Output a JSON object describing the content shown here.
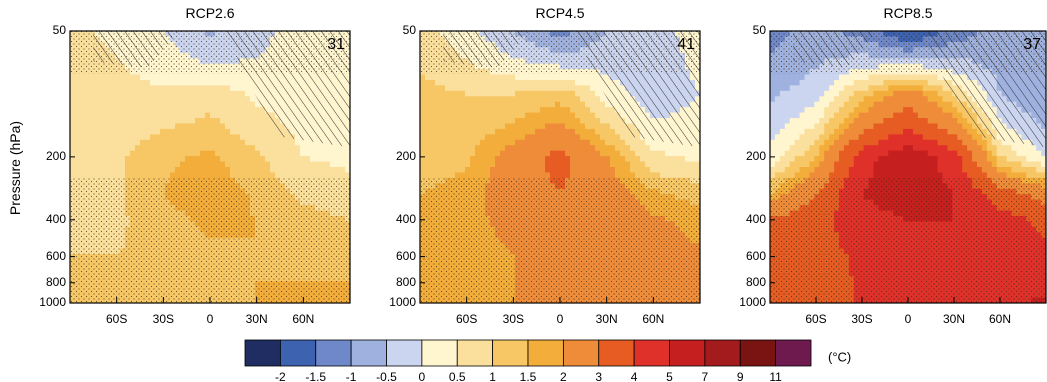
{
  "figure": {
    "ylabel": "Pressure (hPa)",
    "colorbar_unit": "(°C)"
  },
  "colorbar": {
    "ticks": [
      "-2",
      "-1.5",
      "-1",
      "-0.5",
      "0",
      "0.5",
      "1",
      "1.5",
      "2",
      "3",
      "4",
      "5",
      "7",
      "9",
      "11"
    ],
    "colors": [
      "#1f2d62",
      "#3d62b0",
      "#6f88c9",
      "#9fb1df",
      "#cbd5ef",
      "#fff5cf",
      "#fbdf9c",
      "#f7c765",
      "#f3ad3a",
      "#ef8c3a",
      "#e65c22",
      "#e0302a",
      "#c5201f",
      "#a31b1c",
      "#7a1412",
      "#6f1a4f"
    ]
  },
  "chart_data": [
    {
      "type": "heatmap",
      "title": "RCP2.6",
      "annotation": "31",
      "xlabel": "",
      "ylabel": "Pressure (hPa)",
      "x_ticks": [
        "60S",
        "30S",
        "0",
        "30N",
        "60N"
      ],
      "x_tick_values": [
        -60,
        -30,
        0,
        30,
        60
      ],
      "xlim": [
        -90,
        90
      ],
      "y_ticks": [
        "50",
        "200",
        "400",
        "600",
        "800",
        "1000"
      ],
      "y_tick_values": [
        50,
        200,
        400,
        600,
        800,
        1000
      ],
      "ylim": [
        50,
        1000
      ],
      "y_scale": "log",
      "x": [
        -90,
        -60,
        -30,
        0,
        30,
        60,
        90
      ],
      "y": [
        50,
        100,
        200,
        300,
        400,
        600,
        800,
        1000
      ],
      "z": [
        [
          0.6,
          0.4,
          0.0,
          -0.6,
          -0.2,
          0.3,
          0.4
        ],
        [
          1.0,
          0.7,
          0.6,
          0.8,
          0.4,
          0.3,
          0.3
        ],
        [
          1.0,
          0.9,
          1.4,
          1.6,
          1.1,
          0.5,
          0.4
        ],
        [
          0.9,
          0.9,
          1.5,
          1.9,
          1.4,
          0.9,
          0.7
        ],
        [
          0.9,
          0.9,
          1.3,
          1.6,
          1.5,
          1.2,
          1.0
        ],
        [
          1.0,
          1.0,
          1.2,
          1.4,
          1.5,
          1.4,
          1.2
        ],
        [
          1.0,
          1.0,
          1.2,
          1.4,
          1.5,
          1.5,
          1.5
        ],
        [
          1.0,
          1.0,
          1.2,
          1.4,
          1.5,
          1.6,
          1.7
        ]
      ]
    },
    {
      "type": "heatmap",
      "title": "RCP4.5",
      "annotation": "41",
      "xlabel": "",
      "ylabel": "",
      "x_ticks": [
        "60S",
        "30S",
        "0",
        "30N",
        "60N"
      ],
      "x_tick_values": [
        -60,
        -30,
        0,
        30,
        60
      ],
      "xlim": [
        -90,
        90
      ],
      "y_ticks": [
        "50",
        "200",
        "400",
        "600",
        "800",
        "1000"
      ],
      "y_tick_values": [
        50,
        200,
        400,
        600,
        800,
        1000
      ],
      "ylim": [
        50,
        1000
      ],
      "y_scale": "log",
      "x": [
        -90,
        -60,
        -30,
        0,
        30,
        60,
        90
      ],
      "y": [
        50,
        100,
        200,
        300,
        400,
        600,
        800,
        1000
      ],
      "z": [
        [
          0.7,
          0.2,
          -0.5,
          -1.2,
          -0.5,
          -0.2,
          0.2
        ],
        [
          1.2,
          1.0,
          1.0,
          1.3,
          0.3,
          -0.3,
          0.0
        ],
        [
          1.3,
          1.4,
          2.4,
          3.3,
          2.0,
          0.6,
          0.4
        ],
        [
          1.5,
          1.7,
          2.6,
          3.0,
          2.6,
          1.6,
          1.3
        ],
        [
          1.5,
          1.7,
          2.3,
          2.6,
          2.6,
          2.1,
          1.8
        ],
        [
          1.5,
          1.6,
          2.0,
          2.3,
          2.4,
          2.3,
          2.1
        ],
        [
          1.5,
          1.6,
          2.0,
          2.2,
          2.4,
          2.4,
          2.5
        ],
        [
          1.5,
          1.6,
          2.0,
          2.2,
          2.4,
          2.6,
          3.1
        ]
      ]
    },
    {
      "type": "heatmap",
      "title": "RCP8.5",
      "annotation": "37",
      "xlabel": "",
      "ylabel": "",
      "x_ticks": [
        "60S",
        "30S",
        "0",
        "30N",
        "60N"
      ],
      "x_tick_values": [
        -60,
        -30,
        0,
        30,
        60
      ],
      "xlim": [
        -90,
        90
      ],
      "y_ticks": [
        "50",
        "200",
        "400",
        "600",
        "800",
        "1000"
      ],
      "y_tick_values": [
        50,
        200,
        400,
        600,
        800,
        1000
      ],
      "ylim": [
        50,
        1000
      ],
      "y_scale": "log",
      "x": [
        -90,
        -60,
        -30,
        0,
        30,
        60,
        90
      ],
      "y": [
        50,
        100,
        200,
        300,
        400,
        600,
        800,
        1000
      ],
      "z": [
        [
          -1.2,
          -0.8,
          -1.2,
          -2.1,
          -1.3,
          -0.8,
          -1.0
        ],
        [
          -0.6,
          -0.2,
          1.2,
          2.5,
          1.0,
          -0.5,
          -1.0
        ],
        [
          0.2,
          1.5,
          4.6,
          5.8,
          4.5,
          1.0,
          0.0
        ],
        [
          1.5,
          3.0,
          5.0,
          5.6,
          5.0,
          3.5,
          2.5
        ],
        [
          3.2,
          3.6,
          4.6,
          5.0,
          5.0,
          4.4,
          3.8
        ],
        [
          3.4,
          3.6,
          4.2,
          4.6,
          4.6,
          4.4,
          4.2
        ],
        [
          3.4,
          3.6,
          4.1,
          4.4,
          4.5,
          4.5,
          4.6
        ],
        [
          3.4,
          3.6,
          4.1,
          4.4,
          4.6,
          4.8,
          5.2
        ]
      ]
    }
  ]
}
